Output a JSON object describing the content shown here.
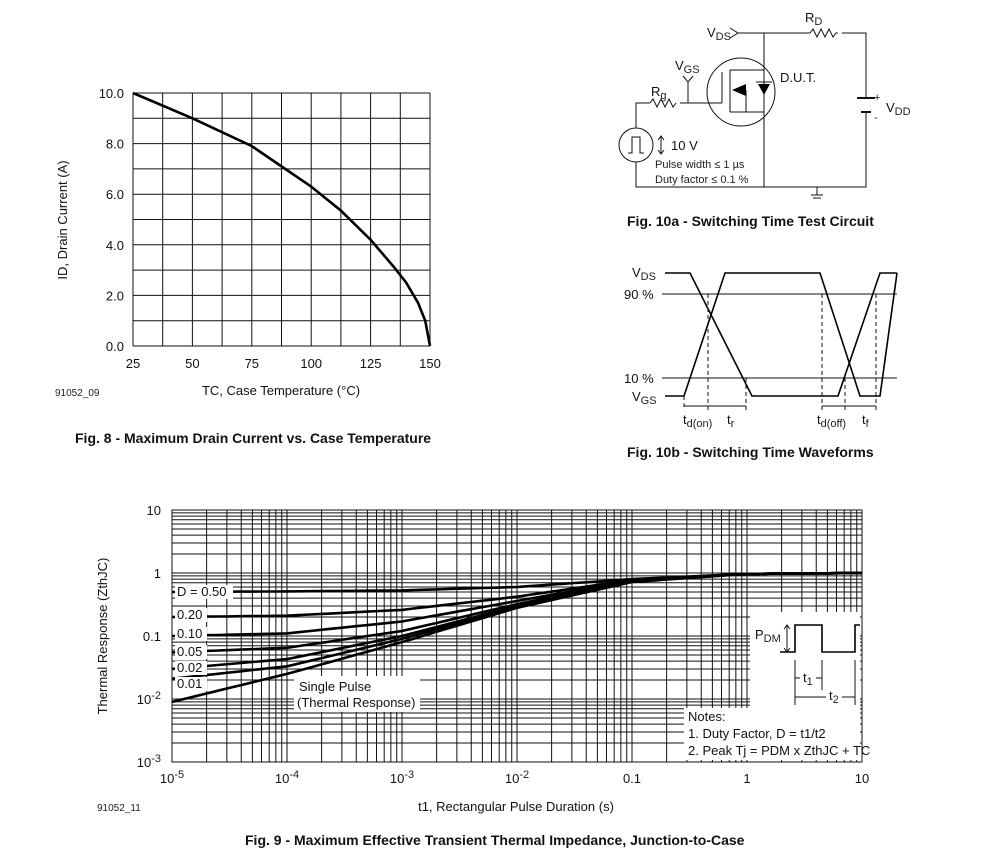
{
  "chart_data": [
    {
      "type": "line",
      "title": "Fig. 8 - Maximum Drain Current vs. Case Temperature",
      "xlabel": "TC, Case Temperature (°C)",
      "ylabel": "ID, Drain Current (A)",
      "xlim": [
        25,
        150
      ],
      "ylim": [
        0,
        10
      ],
      "grid": true,
      "xticks": [
        "25",
        "50",
        "75",
        "100",
        "125",
        "150"
      ],
      "yticks": [
        "0.0",
        "2.0",
        "4.0",
        "6.0",
        "8.0",
        "10.0"
      ],
      "x": [
        25,
        50,
        75,
        87.5,
        100,
        112.5,
        125,
        135,
        140,
        145,
        148,
        150
      ],
      "y": [
        10,
        9.0,
        7.9,
        7.1,
        6.3,
        5.35,
        4.2,
        3.1,
        2.5,
        1.7,
        1.0,
        0
      ],
      "code": "91052_09"
    },
    {
      "type": "line",
      "title": "Fig. 9 - Maximum Effective Transient Thermal Impedance, Junction-to-Case",
      "xlabel": "t1, Rectangular Pulse Duration (s)",
      "ylabel": "Thermal Response (ZthJC)",
      "xscale": "log",
      "yscale": "log",
      "xlim": [
        1e-05,
        10
      ],
      "ylim": [
        0.001,
        10
      ],
      "grid": true,
      "xticks": [
        "10-5",
        "10-4",
        "10-3",
        "10-2",
        "0.1",
        "1",
        "10"
      ],
      "yticks": [
        "10",
        "1",
        "0.1",
        "10-2",
        "10-3"
      ],
      "x": [
        1e-05,
        0.0001,
        0.001,
        0.01,
        0.1,
        1,
        10
      ],
      "series": [
        {
          "name": "D = 0.50",
          "values": [
            0.5,
            0.51,
            0.53,
            0.6,
            0.8,
            0.97,
            1.0
          ]
        },
        {
          "name": "0.20",
          "values": [
            0.2,
            0.21,
            0.26,
            0.42,
            0.78,
            0.97,
            1.0
          ]
        },
        {
          "name": "0.10",
          "values": [
            0.1,
            0.11,
            0.17,
            0.36,
            0.76,
            0.97,
            1.0
          ]
        },
        {
          "name": "0.05",
          "values": [
            0.055,
            0.065,
            0.12,
            0.32,
            0.75,
            0.97,
            1.0
          ]
        },
        {
          "name": "0.02",
          "values": [
            0.03,
            0.043,
            0.1,
            0.3,
            0.74,
            0.97,
            1.0
          ]
        },
        {
          "name": "0.01",
          "values": [
            0.021,
            0.033,
            0.09,
            0.29,
            0.73,
            0.97,
            1.0
          ]
        },
        {
          "name": "Single Pulse (Thermal Response)",
          "values": [
            0.009,
            0.025,
            0.08,
            0.28,
            0.72,
            0.97,
            1.0
          ]
        }
      ],
      "annotation": {
        "label1": "Single Pulse",
        "label2": "(Thermal Response)"
      },
      "notes": {
        "title": "Notes:",
        "n1": "1.  Duty Factor, D = t1/t2",
        "n2": "2.  Peak Tj = PDM x ZthJC + TC"
      },
      "code": "91052_11"
    }
  ],
  "fig10a": {
    "caption": "Fig. 10a - Switching Time Test Circuit",
    "vds": "V",
    "vds_sub": "DS",
    "rd": "R",
    "rd_sub": "D",
    "vgs": "V",
    "vgs_sub": "GS",
    "rg": "R",
    "rg_sub": "g",
    "dut": "D.U.T.",
    "vdd": "V",
    "vdd_sub": "DD",
    "plus": "+",
    "minus": "-",
    "volt": "10 V",
    "pw": "Pulse width ≤ 1 µs",
    "df": "Duty factor ≤ 0.1 %"
  },
  "fig10b": {
    "caption": "Fig. 10b - Switching Time Waveforms",
    "vds": "V",
    "vds_sub": "DS",
    "p90": "90 %",
    "p10": "10 %",
    "vgs": "V",
    "vgs_sub": "GS",
    "tdon": "t",
    "tdon_sub": "d(on)",
    "tr": "t",
    "tr_sub": "r",
    "tdoff": "t",
    "tdoff_sub": "d(off)",
    "tf": "t",
    "tf_sub": "f"
  },
  "fig9_inset": {
    "pdm": "P",
    "pdm_sub": "DM",
    "t1": "t",
    "t1_sub": "1",
    "t2": "t",
    "t2_sub": "2"
  }
}
